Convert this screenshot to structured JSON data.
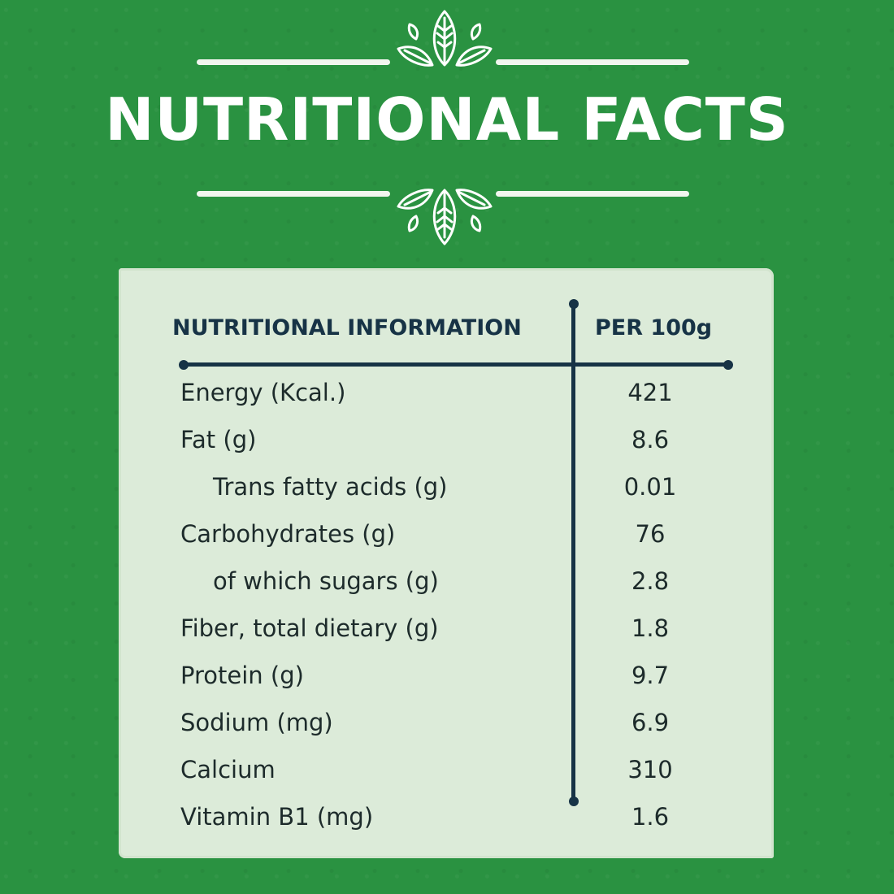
{
  "title": "NUTRITIONAL FACTS",
  "table": {
    "header_left": "NUTRITIONAL INFORMATION",
    "header_right": "PER 100g",
    "rows": [
      {
        "label": "Energy (Kcal.)",
        "value": "421"
      },
      {
        "label": "Fat (g)",
        "value": "8.6"
      },
      {
        "label": "Trans fatty acids (g)",
        "value": "0.01"
      },
      {
        "label": "Carbohydrates (g)",
        "value": "76"
      },
      {
        "label": "of which sugars (g)",
        "value": "2.8"
      },
      {
        "label": "Fiber, total dietary (g)",
        "value": "1.8"
      },
      {
        "label": "Protein (g)",
        "value": "9.7"
      },
      {
        "label": "Sodium (mg)",
        "value": "6.9"
      },
      {
        "label": "Calcium",
        "value": "310"
      },
      {
        "label": "Vitamin B1 (mg)",
        "value": "1.6"
      }
    ]
  },
  "colors": {
    "background": "#2a9241",
    "panel": "#dcebd9",
    "ink": "#173346",
    "title": "#ffffff"
  },
  "icons": [
    "leaf-ornament-icon"
  ]
}
